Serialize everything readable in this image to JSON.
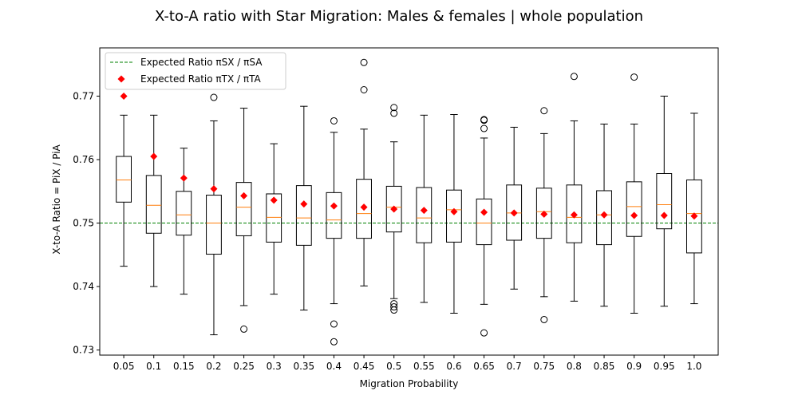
{
  "chart_data": {
    "type": "box",
    "title": "X-to-A ratio with Star Migration: Males & females | whole population",
    "xlabel": "Migration Probability",
    "ylabel": "X-to-A Ratio = PiX / PiA",
    "ylim": [
      0.7292,
      0.7776
    ],
    "yticks": [
      0.73,
      0.74,
      0.75,
      0.76,
      0.77
    ],
    "ytick_labels": [
      "0.73",
      "0.74",
      "0.75",
      "0.76",
      "0.77"
    ],
    "categories": [
      "0.05",
      "0.1",
      "0.15",
      "0.2",
      "0.25",
      "0.3",
      "0.35",
      "0.4",
      "0.45",
      "0.5",
      "0.55",
      "0.6",
      "0.65",
      "0.7",
      "0.75",
      "0.8",
      "0.85",
      "0.9",
      "0.95",
      "1.0"
    ],
    "grid": false,
    "legend_position": "top-left",
    "legend": [
      {
        "label": "Expected Ratio πSX / πSA",
        "style": "dashed-line",
        "color": "#008000"
      },
      {
        "label": "Expected Ratio πTX / πTA",
        "style": "diamond",
        "color": "#ff0000"
      }
    ],
    "reference_line": {
      "name": "Expected Ratio πSX / πSA",
      "y": 0.75
    },
    "expected_ratio_TX_TA": [
      0.77,
      0.7605,
      0.7571,
      0.7554,
      0.7543,
      0.7536,
      0.753,
      0.7527,
      0.7525,
      0.7522,
      0.752,
      0.7518,
      0.7517,
      0.7516,
      0.7514,
      0.7513,
      0.7513,
      0.7512,
      0.7512,
      0.7511
    ],
    "boxes": [
      {
        "whisker_low": 0.7432,
        "q1": 0.7533,
        "median": 0.7568,
        "q3": 0.7605,
        "whisker_high": 0.767,
        "outliers": []
      },
      {
        "whisker_low": 0.74,
        "q1": 0.7484,
        "median": 0.7528,
        "q3": 0.7575,
        "whisker_high": 0.767,
        "outliers": []
      },
      {
        "whisker_low": 0.7388,
        "q1": 0.7481,
        "median": 0.7513,
        "q3": 0.755,
        "whisker_high": 0.7618,
        "outliers": []
      },
      {
        "whisker_low": 0.7324,
        "q1": 0.7451,
        "median": 0.75,
        "q3": 0.7544,
        "whisker_high": 0.7661,
        "outliers": [
          0.7698
        ]
      },
      {
        "whisker_low": 0.737,
        "q1": 0.748,
        "median": 0.7525,
        "q3": 0.7564,
        "whisker_high": 0.7681,
        "outliers": [
          0.7333
        ]
      },
      {
        "whisker_low": 0.7388,
        "q1": 0.747,
        "median": 0.7509,
        "q3": 0.7546,
        "whisker_high": 0.7625,
        "outliers": []
      },
      {
        "whisker_low": 0.7363,
        "q1": 0.7465,
        "median": 0.7508,
        "q3": 0.7559,
        "whisker_high": 0.7684,
        "outliers": []
      },
      {
        "whisker_low": 0.7373,
        "q1": 0.7476,
        "median": 0.7505,
        "q3": 0.7548,
        "whisker_high": 0.7643,
        "outliers": [
          0.7341,
          0.7313,
          0.7661
        ]
      },
      {
        "whisker_low": 0.7401,
        "q1": 0.7476,
        "median": 0.7515,
        "q3": 0.7569,
        "whisker_high": 0.7648,
        "outliers": [
          0.7753,
          0.771
        ]
      },
      {
        "whisker_low": 0.7381,
        "q1": 0.7486,
        "median": 0.7525,
        "q3": 0.7558,
        "whisker_high": 0.7628,
        "outliers": [
          0.7682,
          0.7673,
          0.7373,
          0.7368,
          0.7363
        ]
      },
      {
        "whisker_low": 0.7375,
        "q1": 0.7469,
        "median": 0.7508,
        "q3": 0.7556,
        "whisker_high": 0.767,
        "outliers": []
      },
      {
        "whisker_low": 0.7358,
        "q1": 0.747,
        "median": 0.7521,
        "q3": 0.7552,
        "whisker_high": 0.7671,
        "outliers": []
      },
      {
        "whisker_low": 0.7372,
        "q1": 0.7466,
        "median": 0.75,
        "q3": 0.7538,
        "whisker_high": 0.7634,
        "outliers": [
          0.7663,
          0.7662,
          0.7649,
          0.7327
        ]
      },
      {
        "whisker_low": 0.7396,
        "q1": 0.7473,
        "median": 0.7516,
        "q3": 0.756,
        "whisker_high": 0.7651,
        "outliers": []
      },
      {
        "whisker_low": 0.7384,
        "q1": 0.7476,
        "median": 0.7518,
        "q3": 0.7555,
        "whisker_high": 0.7641,
        "outliers": [
          0.7677,
          0.7348
        ]
      },
      {
        "whisker_low": 0.7377,
        "q1": 0.7469,
        "median": 0.7509,
        "q3": 0.756,
        "whisker_high": 0.7661,
        "outliers": [
          0.7731
        ]
      },
      {
        "whisker_low": 0.7369,
        "q1": 0.7466,
        "median": 0.7513,
        "q3": 0.7551,
        "whisker_high": 0.7656,
        "outliers": []
      },
      {
        "whisker_low": 0.7358,
        "q1": 0.7479,
        "median": 0.7526,
        "q3": 0.7565,
        "whisker_high": 0.7656,
        "outliers": [
          0.773
        ]
      },
      {
        "whisker_low": 0.7369,
        "q1": 0.7491,
        "median": 0.7529,
        "q3": 0.7578,
        "whisker_high": 0.77,
        "outliers": []
      },
      {
        "whisker_low": 0.7373,
        "q1": 0.7453,
        "median": 0.7515,
        "q3": 0.7568,
        "whisker_high": 0.7673,
        "outliers": []
      }
    ],
    "colors": {
      "box": "#000000",
      "median": "#ff7f0e",
      "reference_line": "#008000",
      "expected_marker": "#ff0000"
    }
  }
}
